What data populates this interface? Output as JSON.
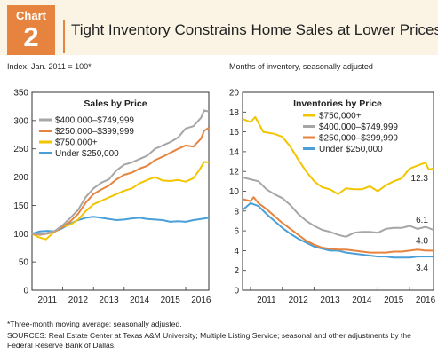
{
  "header": {
    "badge_word": "Chart",
    "badge_number": "2",
    "title": "Tight Inventory Constrains Home Sales at Lower Prices"
  },
  "footer": {
    "note": "*Three-month moving average; seasonally adjusted.",
    "sources": "SOURCES: Real Estate Center at Texas A&M University; Multiple Listing Service; seasonal and other adjustments by the Federal Reserve Bank of Dallas."
  },
  "chart_data": [
    {
      "type": "line",
      "title": "Sales by Price",
      "unit_label": "Index, Jan. 2011 = 100*",
      "x_ticks": [
        "2011",
        "2012",
        "2013",
        "2014",
        "2015",
        "2016"
      ],
      "xlim": [
        2011,
        2016.75
      ],
      "ylim": [
        0,
        350
      ],
      "y_ticks": [
        0,
        50,
        100,
        150,
        200,
        250,
        300,
        350
      ],
      "legend_position": "top-left",
      "series": [
        {
          "name": "$400,000–$749,999",
          "color": "#a6a6a6",
          "points": [
            [
              2011,
              100
            ],
            [
              2011.25,
              99
            ],
            [
              2011.5,
              101
            ],
            [
              2011.75,
              105
            ],
            [
              2012,
              115
            ],
            [
              2012.25,
              128
            ],
            [
              2012.5,
              142
            ],
            [
              2012.75,
              165
            ],
            [
              2013,
              180
            ],
            [
              2013.25,
              190
            ],
            [
              2013.5,
              196
            ],
            [
              2013.75,
              212
            ],
            [
              2014,
              222
            ],
            [
              2014.25,
              226
            ],
            [
              2014.5,
              232
            ],
            [
              2014.75,
              238
            ],
            [
              2015,
              250
            ],
            [
              2015.25,
              256
            ],
            [
              2015.5,
              262
            ],
            [
              2015.75,
              270
            ],
            [
              2016,
              286
            ],
            [
              2016.25,
              290
            ],
            [
              2016.5,
              305
            ],
            [
              2016.6,
              318
            ],
            [
              2016.75,
              316
            ]
          ]
        },
        {
          "name": "$250,000–$399,999",
          "color": "#e6843f",
          "points": [
            [
              2011,
              100
            ],
            [
              2011.25,
              98
            ],
            [
              2011.5,
              100
            ],
            [
              2011.75,
              104
            ],
            [
              2012,
              112
            ],
            [
              2012.25,
              122
            ],
            [
              2012.5,
              135
            ],
            [
              2012.75,
              155
            ],
            [
              2013,
              170
            ],
            [
              2013.25,
              178
            ],
            [
              2013.5,
              185
            ],
            [
              2013.75,
              196
            ],
            [
              2014,
              204
            ],
            [
              2014.25,
              208
            ],
            [
              2014.5,
              215
            ],
            [
              2014.75,
              220
            ],
            [
              2015,
              230
            ],
            [
              2015.25,
              236
            ],
            [
              2015.5,
              243
            ],
            [
              2015.75,
              250
            ],
            [
              2016,
              256
            ],
            [
              2016.25,
              254
            ],
            [
              2016.5,
              268
            ],
            [
              2016.6,
              282
            ],
            [
              2016.75,
              287
            ]
          ]
        },
        {
          "name": "$750,000+",
          "color": "#f2c500",
          "points": [
            [
              2011,
              100
            ],
            [
              2011.2,
              94
            ],
            [
              2011.45,
              90
            ],
            [
              2011.7,
              102
            ],
            [
              2012,
              112
            ],
            [
              2012.25,
              116
            ],
            [
              2012.5,
              125
            ],
            [
              2012.75,
              140
            ],
            [
              2013,
              152
            ],
            [
              2013.25,
              158
            ],
            [
              2013.5,
              164
            ],
            [
              2013.75,
              170
            ],
            [
              2014,
              176
            ],
            [
              2014.25,
              180
            ],
            [
              2014.5,
              189
            ],
            [
              2014.75,
              195
            ],
            [
              2015,
              200
            ],
            [
              2015.25,
              194
            ],
            [
              2015.5,
              193
            ],
            [
              2015.75,
              195
            ],
            [
              2016,
              192
            ],
            [
              2016.25,
              198
            ],
            [
              2016.45,
              213
            ],
            [
              2016.6,
              227
            ],
            [
              2016.75,
              226
            ]
          ]
        },
        {
          "name": "Under $250,000",
          "color": "#4a9fd8",
          "points": [
            [
              2011,
              100
            ],
            [
              2011.25,
              104
            ],
            [
              2011.5,
              105
            ],
            [
              2011.75,
              104
            ],
            [
              2012,
              110
            ],
            [
              2012.25,
              118
            ],
            [
              2012.5,
              124
            ],
            [
              2012.75,
              128
            ],
            [
              2013,
              130
            ],
            [
              2013.25,
              128
            ],
            [
              2013.5,
              126
            ],
            [
              2013.75,
              124
            ],
            [
              2014,
              125
            ],
            [
              2014.25,
              127
            ],
            [
              2014.5,
              128
            ],
            [
              2014.75,
              126
            ],
            [
              2015,
              125
            ],
            [
              2015.25,
              124
            ],
            [
              2015.5,
              121
            ],
            [
              2015.75,
              122
            ],
            [
              2016,
              121
            ],
            [
              2016.25,
              124
            ],
            [
              2016.5,
              126
            ],
            [
              2016.75,
              128
            ]
          ]
        }
      ]
    },
    {
      "type": "line",
      "title": "Inventories by Price",
      "unit_label": "Months of inventory, seasonally adjusted",
      "x_ticks": [
        "2011",
        "2012",
        "2013",
        "2014",
        "2015",
        "2016"
      ],
      "xlim": [
        2010.75,
        2016.75
      ],
      "ylim": [
        0,
        20
      ],
      "y_ticks": [
        0,
        2,
        4,
        6,
        8,
        10,
        12,
        14,
        16,
        18,
        20
      ],
      "legend_position": "top-right",
      "series": [
        {
          "name": "$750,000+",
          "color": "#f2c500",
          "end_label": "12.3",
          "points": [
            [
              2010.75,
              17.3
            ],
            [
              2011,
              17.0
            ],
            [
              2011.15,
              17.5
            ],
            [
              2011.4,
              16.0
            ],
            [
              2011.75,
              15.8
            ],
            [
              2012,
              15.5
            ],
            [
              2012.25,
              14.5
            ],
            [
              2012.5,
              13.2
            ],
            [
              2012.75,
              12.0
            ],
            [
              2013,
              11.0
            ],
            [
              2013.25,
              10.4
            ],
            [
              2013.5,
              10.2
            ],
            [
              2013.75,
              9.7
            ],
            [
              2014,
              10.3
            ],
            [
              2014.25,
              10.2
            ],
            [
              2014.5,
              10.2
            ],
            [
              2014.75,
              10.5
            ],
            [
              2015,
              10.0
            ],
            [
              2015.25,
              10.6
            ],
            [
              2015.5,
              11.0
            ],
            [
              2015.75,
              11.3
            ],
            [
              2016,
              12.3
            ],
            [
              2016.25,
              12.6
            ],
            [
              2016.5,
              12.9
            ],
            [
              2016.6,
              12.2
            ],
            [
              2016.75,
              12.3
            ]
          ]
        },
        {
          "name": "$400,000–$749,999",
          "color": "#a6a6a6",
          "end_label": "6.1",
          "points": [
            [
              2010.75,
              11.4
            ],
            [
              2011,
              11.2
            ],
            [
              2011.25,
              11.0
            ],
            [
              2011.5,
              10.2
            ],
            [
              2011.75,
              9.7
            ],
            [
              2012,
              9.3
            ],
            [
              2012.25,
              8.6
            ],
            [
              2012.5,
              7.7
            ],
            [
              2012.75,
              7.0
            ],
            [
              2013,
              6.5
            ],
            [
              2013.25,
              6.1
            ],
            [
              2013.5,
              5.9
            ],
            [
              2013.75,
              5.6
            ],
            [
              2014,
              5.4
            ],
            [
              2014.25,
              5.8
            ],
            [
              2014.5,
              5.9
            ],
            [
              2014.75,
              5.9
            ],
            [
              2015,
              5.8
            ],
            [
              2015.25,
              6.2
            ],
            [
              2015.5,
              6.3
            ],
            [
              2015.75,
              6.3
            ],
            [
              2016,
              6.5
            ],
            [
              2016.25,
              6.2
            ],
            [
              2016.5,
              6.4
            ],
            [
              2016.75,
              6.1
            ]
          ]
        },
        {
          "name": "$250,000–$399,999",
          "color": "#e6843f",
          "end_label": "4.0",
          "points": [
            [
              2010.75,
              9.2
            ],
            [
              2011,
              9.0
            ],
            [
              2011.1,
              9.4
            ],
            [
              2011.25,
              8.8
            ],
            [
              2011.5,
              8.2
            ],
            [
              2011.75,
              7.5
            ],
            [
              2012,
              6.8
            ],
            [
              2012.25,
              6.2
            ],
            [
              2012.5,
              5.6
            ],
            [
              2012.75,
              5.0
            ],
            [
              2013,
              4.6
            ],
            [
              2013.25,
              4.3
            ],
            [
              2013.5,
              4.2
            ],
            [
              2013.75,
              4.1
            ],
            [
              2014,
              4.1
            ],
            [
              2014.25,
              4.0
            ],
            [
              2014.5,
              3.9
            ],
            [
              2014.75,
              3.8
            ],
            [
              2015,
              3.8
            ],
            [
              2015.25,
              3.8
            ],
            [
              2015.5,
              3.9
            ],
            [
              2015.75,
              3.9
            ],
            [
              2016,
              4.0
            ],
            [
              2016.25,
              4.1
            ],
            [
              2016.5,
              4.0
            ],
            [
              2016.75,
              4.0
            ]
          ]
        },
        {
          "name": "Under $250,000",
          "color": "#4a9fd8",
          "end_label": "3.4",
          "points": [
            [
              2010.75,
              8.1
            ],
            [
              2011,
              8.8
            ],
            [
              2011.25,
              8.5
            ],
            [
              2011.5,
              7.7
            ],
            [
              2011.75,
              7.0
            ],
            [
              2012,
              6.3
            ],
            [
              2012.25,
              5.7
            ],
            [
              2012.5,
              5.2
            ],
            [
              2012.75,
              4.8
            ],
            [
              2013,
              4.4
            ],
            [
              2013.25,
              4.2
            ],
            [
              2013.5,
              4.0
            ],
            [
              2013.75,
              4.0
            ],
            [
              2014,
              3.8
            ],
            [
              2014.25,
              3.7
            ],
            [
              2014.5,
              3.6
            ],
            [
              2014.75,
              3.5
            ],
            [
              2015,
              3.4
            ],
            [
              2015.25,
              3.4
            ],
            [
              2015.5,
              3.3
            ],
            [
              2015.75,
              3.3
            ],
            [
              2016,
              3.3
            ],
            [
              2016.25,
              3.4
            ],
            [
              2016.5,
              3.4
            ],
            [
              2016.75,
              3.4
            ]
          ]
        }
      ]
    }
  ]
}
